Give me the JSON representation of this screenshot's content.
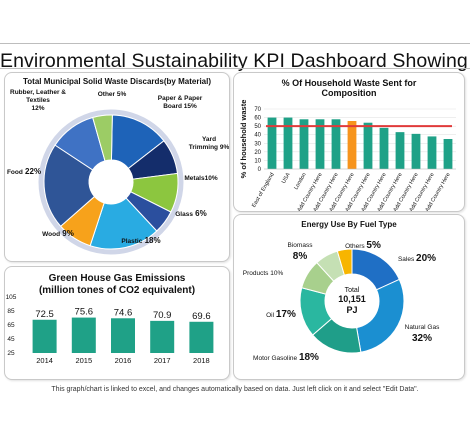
{
  "dashboard": {
    "title": "Environmental Sustainability KPI Dashboard Showing…",
    "footer": "This graph/chart is linked to excel, and changes automatically based on data. Just left click on it and select \"Edit Data\"."
  },
  "colors": {
    "teal": "#1fa187",
    "red": "#e03a3a",
    "orange": "#f7941d",
    "navy": "#1b2a4a",
    "blue": "#2e6fd0",
    "lightgreen": "#8bc34a",
    "skyblue": "#2ea8e0"
  },
  "chart_data": [
    {
      "id": "waste",
      "type": "pie",
      "title": "Total Municipal Solid Waste Discards(by Material)",
      "slices": [
        {
          "name": "Paper & Paper Board",
          "value": 15,
          "label": "15%",
          "color": "#1e63b8"
        },
        {
          "name": "Yard Trimming",
          "value": 9,
          "label": "9%",
          "color": "#142d6b"
        },
        {
          "name": "Metals",
          "value": 10,
          "label": "10%",
          "color": "#8cc63f"
        },
        {
          "name": "Glass",
          "value": 6,
          "label": "6%",
          "color": "#2b4f9e"
        },
        {
          "name": "Plastic",
          "value": 18,
          "label": "18%",
          "color": "#29abe2"
        },
        {
          "name": "Wood",
          "value": 9,
          "label": "9%",
          "color": "#f7a21b"
        },
        {
          "name": "Food",
          "value": 22,
          "label": "22%",
          "color": "#2f5597"
        },
        {
          "name": "Rubber, Leather & Textiles",
          "value": 12,
          "label": "12%",
          "color": "#3f72c4"
        },
        {
          "name": "Other",
          "value": 5,
          "label": "5%",
          "color": "#9ccc65"
        }
      ]
    },
    {
      "id": "household",
      "type": "bar",
      "title": "% Of Household Waste Sent for Composition",
      "ylabel": "% of household waste",
      "ylim": [
        0,
        70
      ],
      "yticks": [
        0,
        10,
        20,
        30,
        40,
        50,
        60,
        70
      ],
      "categories": [
        "East of England",
        "USA",
        "London",
        "Add Country Here",
        "Add Country Here",
        "Add Country Here",
        "Add Country Here",
        "Add Country Here",
        "Add Country Here",
        "Add Country Here",
        "Add Country Here",
        "Add Country Here"
      ],
      "values": [
        60,
        60,
        58,
        58,
        58,
        56,
        54,
        48,
        43,
        41,
        38,
        35
      ],
      "highlight_index": 5,
      "target": 50
    },
    {
      "id": "energy",
      "type": "pie",
      "title": "Energy Use By Fuel Type",
      "center_label": "Total",
      "center_value": "10,151",
      "center_unit": "PJ",
      "slices": [
        {
          "name": "Sales",
          "value": 20,
          "label": "20%",
          "color": "#1f6fc5"
        },
        {
          "name": "Natural Gas",
          "value": 32,
          "label": "32%",
          "color": "#1b8fd1"
        },
        {
          "name": "Motor Gasoline",
          "value": 18,
          "label": "18%",
          "color": "#1f9e89"
        },
        {
          "name": "Oil",
          "value": 17,
          "label": "17%",
          "color": "#2ab7a0"
        },
        {
          "name": "Products",
          "value": 10,
          "label": "10%",
          "color": "#a8d08d"
        },
        {
          "name": "Biomass",
          "value": 8,
          "label": "8%",
          "color": "#c5e0b4"
        },
        {
          "name": "Others",
          "value": 5,
          "label": "5%",
          "color": "#f7b500"
        }
      ]
    },
    {
      "id": "ghg",
      "type": "bar",
      "title": "Green House Gas Emissions",
      "subtitle": "(million tones of CO2 equivalent)",
      "ylim": [
        25,
        105
      ],
      "yticks": [
        25,
        45,
        65,
        85,
        105
      ],
      "categories": [
        "2014",
        "2015",
        "2016",
        "2017",
        "2018"
      ],
      "values": [
        72.5,
        75.6,
        74.6,
        70.9,
        69.6
      ],
      "value_labels": [
        "72.5",
        "75.6",
        "74.6",
        "70.9",
        "69.6"
      ]
    }
  ]
}
